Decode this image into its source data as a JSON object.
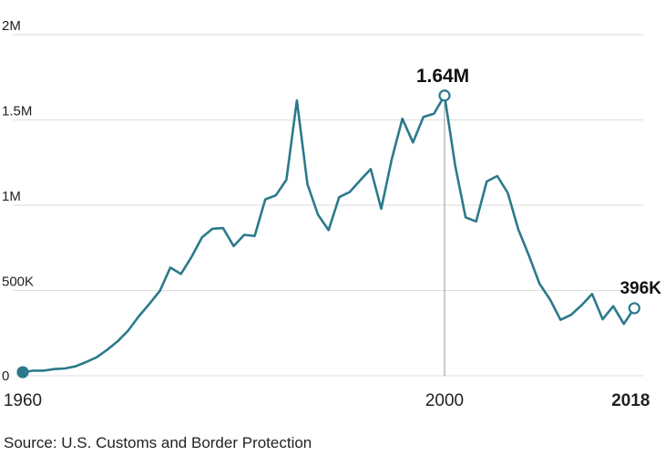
{
  "chart_data": {
    "type": "line",
    "x": [
      1960,
      1961,
      1962,
      1963,
      1964,
      1965,
      1966,
      1967,
      1968,
      1969,
      1970,
      1971,
      1972,
      1973,
      1974,
      1975,
      1976,
      1977,
      1978,
      1979,
      1980,
      1981,
      1982,
      1983,
      1984,
      1985,
      1986,
      1987,
      1988,
      1989,
      1990,
      1991,
      1992,
      1993,
      1994,
      1995,
      1996,
      1997,
      1998,
      1999,
      2000,
      2001,
      2002,
      2003,
      2004,
      2005,
      2006,
      2007,
      2008,
      2009,
      2010,
      2011,
      2012,
      2013,
      2014,
      2015,
      2016,
      2017,
      2018
    ],
    "values": [
      21000,
      30000,
      30000,
      39000,
      43000,
      55000,
      80000,
      108000,
      152000,
      202000,
      265000,
      348000,
      421000,
      498000,
      634000,
      597000,
      696000,
      812000,
      862000,
      866000,
      760000,
      826000,
      820000,
      1034000,
      1058000,
      1149000,
      1615000,
      1123000,
      944000,
      854000,
      1047000,
      1077000,
      1146000,
      1212000,
      979000,
      1271000,
      1507000,
      1368000,
      1517000,
      1537000,
      1643000,
      1235000,
      929000,
      905000,
      1139000,
      1171000,
      1072000,
      858000,
      705000,
      540000,
      447000,
      328000,
      357000,
      414000,
      479000,
      331000,
      408000,
      304000,
      396000
    ],
    "ylim": [
      0,
      2000000
    ],
    "yticks": [
      0,
      500000,
      1000000,
      1500000,
      2000000
    ],
    "ytick_labels": [
      "0",
      "500K",
      "1M",
      "1.5M",
      "2M"
    ],
    "xticks": [
      "1960",
      "2000",
      "2018"
    ],
    "grid": true,
    "annotations": [
      {
        "x": 2000,
        "label": "1.64M"
      },
      {
        "x": 2018,
        "label": "396K"
      }
    ],
    "line_color": "#2b7a8b",
    "source": "Source: U.S. Customs and Border Protection"
  }
}
